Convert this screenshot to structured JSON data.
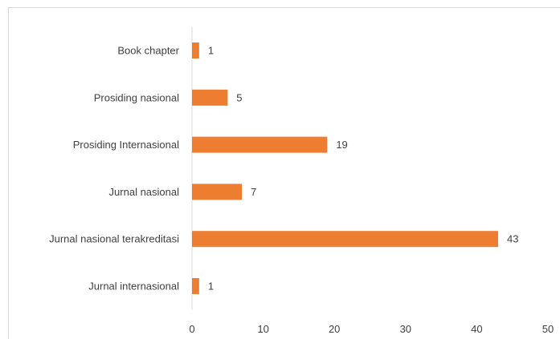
{
  "chart_data": {
    "type": "bar",
    "orientation": "horizontal",
    "title": "",
    "xlabel": "",
    "ylabel": "",
    "categories": [
      "Book chapter",
      "Prosiding nasional",
      "Prosiding Internasional",
      "Jurnal nasional",
      "Jurnal nasional terakreditasi",
      "Jurnal internasional"
    ],
    "values": [
      1,
      5,
      19,
      7,
      43,
      1
    ],
    "xlim": [
      0,
      50
    ],
    "xticks": [
      0,
      10,
      20,
      30,
      40,
      50
    ],
    "data_labels": true,
    "grid": false,
    "legend": "none",
    "bar_color": "#ed7d31"
  }
}
